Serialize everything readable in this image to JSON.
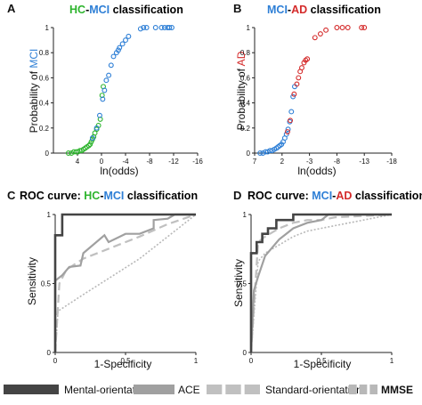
{
  "colors": {
    "hc": "#2db42d",
    "mci": "#2e7fd6",
    "ad": "#d42a2a",
    "dark": "#222222",
    "black": "#111111",
    "mental": "#444444",
    "ace": "#a0a0a0",
    "standard": "#c0c0c0",
    "mmse": "#b8b8b8"
  },
  "panels": {
    "a": {
      "letter": "A",
      "title_hc": "HC",
      "title_dash": "-",
      "title_mci": "MCI",
      "title_rest": " classification",
      "ylabel_prefix": "Probability of ",
      "ylabel_group": "MCI",
      "xlabel": "ln(odds)"
    },
    "b": {
      "letter": "B",
      "title_mci": "MCI",
      "title_dash": "-",
      "title_ad": "AD",
      "title_rest": " classification",
      "ylabel_prefix": "Probability of ",
      "ylabel_group": "AD",
      "xlabel": "ln(odds)"
    },
    "c": {
      "letter": "C",
      "title_prefix": "ROC curve: ",
      "title_hc": "HC",
      "title_dash": "-",
      "title_mci": "MCI",
      "title_rest": " classification",
      "ylabel": "Sensitivity",
      "xlabel": "1-Specificity"
    },
    "d": {
      "letter": "D",
      "title_prefix": "ROC curve: ",
      "title_mci": "MCI",
      "title_dash": "-",
      "title_ad": "AD",
      "title_rest": " classification",
      "ylabel": "Sensitivity",
      "xlabel": "1-Specificity"
    }
  },
  "legend": [
    {
      "label": "Mental-orientation",
      "style": "solid",
      "color": "#444444"
    },
    {
      "label": "ACE",
      "style": "solid",
      "color": "#a0a0a0"
    },
    {
      "label": "Standard-orientation",
      "style": "long-dash",
      "color": "#c0c0c0"
    },
    {
      "label": "MMSE",
      "style": "short-dash",
      "color": "#b8b8b8"
    }
  ],
  "chart_data": [
    {
      "type": "scatter",
      "panel": "A",
      "xlim": [
        8,
        -16
      ],
      "ylim": [
        0,
        1
      ],
      "xticks": [
        4,
        0,
        -4,
        -8,
        -12,
        -16
      ],
      "yticks": [
        0,
        0.2,
        0.4,
        0.6,
        0.8,
        1
      ],
      "series": [
        {
          "name": "HC",
          "color": "#2db42d",
          "x": [
            5.5,
            5.0,
            4.6,
            4.2,
            3.9,
            3.6,
            3.3,
            3.0,
            2.7,
            2.4,
            2.1,
            1.9,
            1.7,
            1.5,
            1.3,
            1.1,
            0.8,
            0.5,
            0.2,
            -0.1,
            -0.3
          ],
          "y": [
            0.0,
            0.0,
            0.01,
            0.01,
            0.01,
            0.02,
            0.02,
            0.03,
            0.04,
            0.05,
            0.06,
            0.07,
            0.09,
            0.11,
            0.13,
            0.16,
            0.19,
            0.22,
            0.27,
            0.46,
            0.53
          ]
        },
        {
          "name": "MCI",
          "color": "#2e7fd6",
          "x": [
            1.5,
            0.8,
            0.3,
            -0.2,
            -0.5,
            -0.8,
            -1.2,
            -1.6,
            -2.0,
            -2.5,
            -2.8,
            -3.0,
            -3.5,
            -4.0,
            -4.5,
            -6.5,
            -7.0,
            -7.5,
            -9.0,
            -10.0,
            -10.5,
            -11.0,
            -11.3,
            -11.7
          ],
          "y": [
            0.12,
            0.2,
            0.3,
            0.43,
            0.5,
            0.58,
            0.62,
            0.7,
            0.77,
            0.8,
            0.82,
            0.84,
            0.87,
            0.9,
            0.93,
            0.99,
            1.0,
            1.0,
            1.0,
            1.0,
            1.0,
            1.0,
            1.0,
            1.0
          ]
        }
      ]
    },
    {
      "type": "scatter",
      "panel": "B",
      "xlim": [
        7,
        -18
      ],
      "ylim": [
        0,
        1
      ],
      "xticks": [
        7,
        2,
        -3,
        -8,
        -13,
        -18
      ],
      "yticks": [
        0,
        0.2,
        0.4,
        0.6,
        0.8,
        1
      ],
      "series": [
        {
          "name": "MCI",
          "color": "#2e7fd6",
          "x": [
            6.0,
            5.5,
            5.0,
            4.6,
            4.2,
            3.8,
            3.4,
            3.0,
            2.7,
            2.4,
            2.1,
            1.8,
            1.5,
            1.2,
            0.9,
            0.6,
            0.3,
            0.0,
            -0.3
          ],
          "y": [
            0.0,
            0.0,
            0.01,
            0.01,
            0.02,
            0.02,
            0.03,
            0.04,
            0.05,
            0.06,
            0.07,
            0.09,
            0.12,
            0.15,
            0.19,
            0.25,
            0.33,
            0.45,
            0.53
          ]
        },
        {
          "name": "AD",
          "color": "#d42a2a",
          "x": [
            1.0,
            0.5,
            -0.2,
            -0.7,
            -1.0,
            -1.3,
            -1.6,
            -2.0,
            -2.3,
            -2.6,
            -4.0,
            -5.0,
            -6.0,
            -8.0,
            -9.0,
            -10.0,
            -12.5,
            -13.0
          ],
          "y": [
            0.17,
            0.26,
            0.47,
            0.55,
            0.6,
            0.65,
            0.68,
            0.72,
            0.74,
            0.75,
            0.92,
            0.95,
            0.98,
            1.0,
            1.0,
            1.0,
            1.0,
            1.0
          ]
        }
      ]
    },
    {
      "type": "line",
      "panel": "C",
      "xlim": [
        0,
        1
      ],
      "ylim": [
        0,
        1
      ],
      "xticks": [
        0,
        0.5,
        1
      ],
      "yticks": [
        0,
        0.5,
        1
      ],
      "series": [
        {
          "name": "Mental-orientation",
          "x": [
            0,
            0,
            0.05,
            0.05,
            0.3,
            0.3,
            1
          ],
          "y": [
            0,
            0.85,
            0.85,
            1.0,
            1.0,
            1.0,
            1.0
          ]
        },
        {
          "name": "ACE",
          "x": [
            0,
            0,
            0.05,
            0.1,
            0.18,
            0.2,
            0.35,
            0.38,
            0.5,
            0.6,
            0.7,
            0.7,
            0.8,
            0.85,
            1
          ],
          "y": [
            0,
            0.52,
            0.56,
            0.62,
            0.63,
            0.72,
            0.85,
            0.8,
            0.86,
            0.86,
            0.9,
            0.96,
            0.97,
            1.0,
            1.0
          ]
        },
        {
          "name": "Standard-orientation",
          "x": [
            0,
            0.03,
            0.08,
            0.2,
            0.4,
            0.6,
            0.8,
            1
          ],
          "y": [
            0,
            0.5,
            0.6,
            0.68,
            0.76,
            0.84,
            0.93,
            1.0
          ]
        },
        {
          "name": "MMSE",
          "x": [
            0,
            0.02,
            0.2,
            0.4,
            0.6,
            0.8,
            1
          ],
          "y": [
            0,
            0.3,
            0.42,
            0.55,
            0.68,
            0.84,
            1.0
          ]
        }
      ]
    },
    {
      "type": "line",
      "panel": "D",
      "xlim": [
        0,
        1
      ],
      "ylim": [
        0,
        1
      ],
      "xticks": [
        0,
        0.5,
        1
      ],
      "yticks": [
        0,
        0.5,
        1
      ],
      "series": [
        {
          "name": "Mental-orientation",
          "x": [
            0,
            0,
            0.04,
            0.04,
            0.08,
            0.08,
            0.12,
            0.12,
            0.18,
            0.18,
            0.3,
            0.3,
            0.45,
            0.45,
            1
          ],
          "y": [
            0,
            0.72,
            0.72,
            0.8,
            0.8,
            0.86,
            0.86,
            0.9,
            0.9,
            0.96,
            0.96,
            1.0,
            1.0,
            1.0,
            1.0
          ]
        },
        {
          "name": "ACE",
          "x": [
            0,
            0.02,
            0.05,
            0.1,
            0.15,
            0.2,
            0.25,
            0.3,
            0.4,
            0.5,
            0.55,
            0.6,
            1
          ],
          "y": [
            0,
            0.45,
            0.55,
            0.7,
            0.76,
            0.82,
            0.86,
            0.9,
            0.94,
            0.96,
            1.0,
            1.0,
            1.0
          ]
        },
        {
          "name": "Standard-orientation",
          "x": [
            0,
            0.05,
            0.1,
            0.2,
            0.3,
            0.4,
            0.5,
            0.6,
            1
          ],
          "y": [
            0,
            0.8,
            0.84,
            0.9,
            0.94,
            0.96,
            0.96,
            0.98,
            1.0
          ]
        },
        {
          "name": "MMSE",
          "x": [
            0,
            0.05,
            0.1,
            0.2,
            0.3,
            0.4,
            0.5,
            0.6,
            0.8,
            1
          ],
          "y": [
            0,
            0.66,
            0.72,
            0.78,
            0.84,
            0.88,
            0.9,
            0.92,
            0.96,
            1.0
          ]
        }
      ]
    }
  ]
}
